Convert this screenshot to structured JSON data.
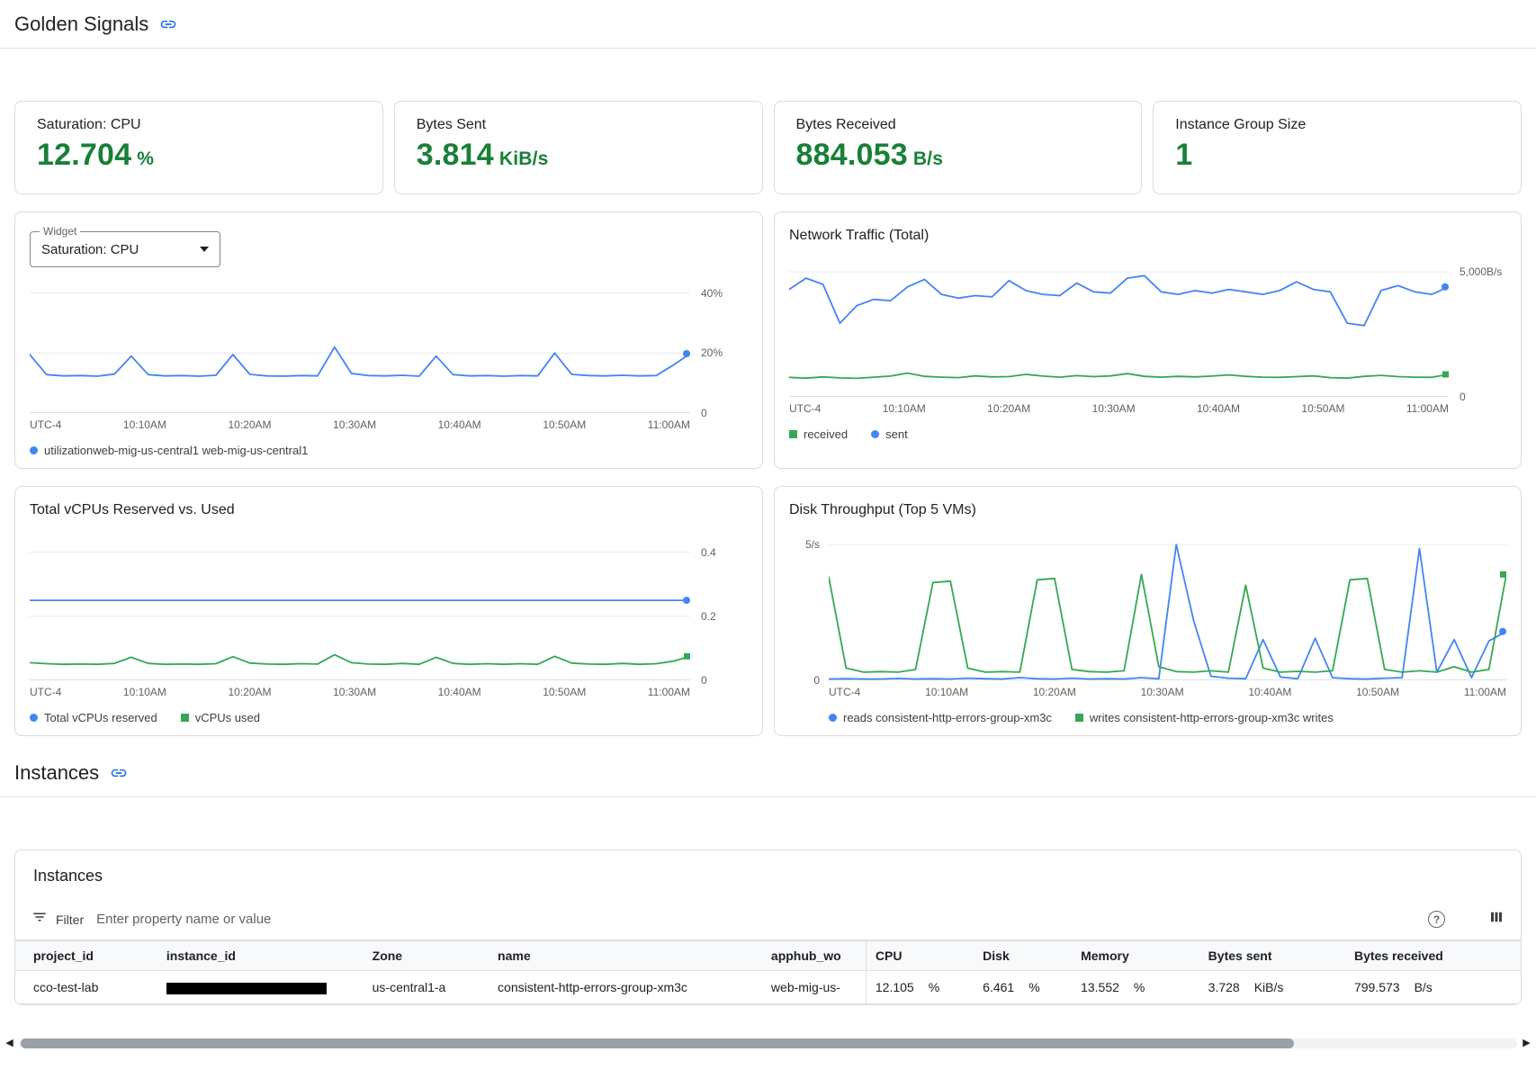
{
  "header": {
    "title": "Golden Signals"
  },
  "section_instances": {
    "title": "Instances"
  },
  "icons": {
    "help": "?",
    "scroll_left": "◀",
    "scroll_right": "▶"
  },
  "colors": {
    "link_blue": "#1a73e8",
    "chart_blue": "#4285f4",
    "chart_green": "#34a853",
    "value_green": "#188038"
  },
  "scorecards": [
    {
      "label": "Saturation: CPU",
      "value": "12.704",
      "unit": "%"
    },
    {
      "label": "Bytes Sent",
      "value": "3.814",
      "unit": "KiB/s"
    },
    {
      "label": "Bytes Received",
      "value": "884.053",
      "unit": "B/s"
    },
    {
      "label": "Instance Group Size",
      "value": "1",
      "unit": ""
    }
  ],
  "widget_selector": {
    "label": "Widget",
    "value": "Saturation: CPU"
  },
  "chart_data": [
    {
      "type": "line",
      "title": "",
      "x_labels": [
        "UTC-4",
        "10:10AM",
        "10:20AM",
        "10:30AM",
        "10:40AM",
        "10:50AM",
        "11:00AM"
      ],
      "ylim": [
        0,
        45
      ],
      "yticks": [
        {
          "value": 40,
          "label": "40%"
        },
        {
          "value": 20,
          "label": "20%"
        },
        {
          "value": 0,
          "label": "0"
        }
      ],
      "y_labels_side": "right",
      "grid": true,
      "legend_position": "bottom",
      "series": [
        {
          "name": "utilizationweb-mig-us-central1 web-mig-us-central1",
          "color": "#4285f4",
          "marker": "circle",
          "values": [
            19.5,
            12.8,
            12.4,
            12.5,
            12.3,
            13,
            19,
            12.8,
            12.4,
            12.5,
            12.3,
            12.6,
            19.5,
            12.9,
            12.4,
            12.3,
            12.5,
            12.4,
            22,
            13.2,
            12.5,
            12.4,
            12.6,
            12.3,
            19,
            12.8,
            12.4,
            12.5,
            12.3,
            12.5,
            12.4,
            20,
            12.9,
            12.5,
            12.4,
            12.6,
            12.4,
            12.5,
            16,
            19.8
          ]
        }
      ]
    },
    {
      "type": "line",
      "title": "Network Traffic (Total)",
      "x_labels": [
        "UTC-4",
        "10:10AM",
        "10:20AM",
        "10:30AM",
        "10:40AM",
        "10:50AM",
        "11:00AM"
      ],
      "ylim": [
        0,
        5400
      ],
      "yticks": [
        {
          "value": 5000,
          "label": "5,000B/s"
        },
        {
          "value": 0,
          "label": "0"
        }
      ],
      "y_labels_side": "right",
      "grid": true,
      "legend_position": "bottom",
      "series": [
        {
          "name": "received",
          "color": "#34a853",
          "marker": "square",
          "values": [
            780,
            750,
            800,
            760,
            740,
            790,
            830,
            950,
            820,
            790,
            770,
            840,
            800,
            810,
            900,
            830,
            790,
            850,
            810,
            840,
            930,
            820,
            790,
            820,
            800,
            830,
            880,
            820,
            790,
            780,
            810,
            840,
            770,
            750,
            820,
            860,
            810,
            790,
            780,
            900
          ]
        },
        {
          "name": "sent",
          "color": "#4285f4",
          "marker": "circle",
          "values": [
            4300,
            4750,
            4500,
            2950,
            3650,
            3900,
            3850,
            4400,
            4700,
            4100,
            3950,
            4050,
            4000,
            4650,
            4250,
            4100,
            4050,
            4550,
            4200,
            4150,
            4750,
            4850,
            4200,
            4100,
            4250,
            4150,
            4300,
            4200,
            4100,
            4250,
            4600,
            4300,
            4200,
            2950,
            2850,
            4250,
            4450,
            4200,
            4100,
            4400
          ]
        }
      ]
    },
    {
      "type": "line",
      "title": "Total vCPUs Reserved vs. Used",
      "x_labels": [
        "UTC-4",
        "10:10AM",
        "10:20AM",
        "10:30AM",
        "10:40AM",
        "10:50AM",
        "11:00AM"
      ],
      "ylim": [
        0,
        0.45
      ],
      "yticks": [
        {
          "value": 0.4,
          "label": "0.4"
        },
        {
          "value": 0.2,
          "label": "0.2"
        },
        {
          "value": 0,
          "label": "0"
        }
      ],
      "y_labels_side": "right",
      "grid": true,
      "legend_position": "bottom",
      "series": [
        {
          "name": "Total vCPUs reserved",
          "color": "#4285f4",
          "marker": "circle",
          "values": [
            0.25,
            0.25,
            0.25,
            0.25,
            0.25,
            0.25,
            0.25,
            0.25,
            0.25,
            0.25,
            0.25,
            0.25,
            0.25,
            0.25,
            0.25,
            0.25,
            0.25,
            0.25,
            0.25,
            0.25,
            0.25,
            0.25,
            0.25,
            0.25,
            0.25,
            0.25,
            0.25,
            0.25,
            0.25,
            0.25,
            0.25,
            0.25,
            0.25,
            0.25,
            0.25,
            0.25,
            0.25,
            0.25,
            0.25,
            0.25
          ]
        },
        {
          "name": "vCPUs used",
          "color": "#34a853",
          "marker": "square",
          "values": [
            0.055,
            0.052,
            0.05,
            0.051,
            0.05,
            0.053,
            0.072,
            0.053,
            0.05,
            0.051,
            0.05,
            0.052,
            0.074,
            0.054,
            0.051,
            0.05,
            0.052,
            0.051,
            0.08,
            0.055,
            0.051,
            0.05,
            0.053,
            0.05,
            0.072,
            0.053,
            0.05,
            0.052,
            0.05,
            0.052,
            0.05,
            0.075,
            0.054,
            0.051,
            0.05,
            0.053,
            0.05,
            0.052,
            0.06,
            0.075
          ]
        }
      ]
    },
    {
      "type": "line",
      "title": "Disk Throughput (Top 5 VMs)",
      "x_labels": [
        "UTC-4",
        "10:10AM",
        "10:20AM",
        "10:30AM",
        "10:40AM",
        "10:50AM",
        "11:00AM"
      ],
      "ylim": [
        0,
        5.3
      ],
      "yticks": [
        {
          "value": 5,
          "label": "5/s"
        },
        {
          "value": 0,
          "label": "0"
        }
      ],
      "y_labels_side": "left",
      "grid": true,
      "legend_position": "bottom",
      "series": [
        {
          "name": "reads consistent-http-errors-group-xm3c",
          "color": "#4285f4",
          "marker": "circle",
          "values": [
            0.05,
            0.06,
            0.05,
            0.05,
            0.07,
            0.05,
            0.06,
            0.05,
            0.08,
            0.06,
            0.05,
            0.1,
            0.06,
            0.05,
            0.08,
            0.05,
            0.06,
            0.05,
            0.1,
            0.06,
            5.0,
            2.2,
            0.15,
            0.08,
            0.06,
            1.5,
            0.12,
            0.06,
            1.55,
            0.1,
            0.06,
            0.05,
            0.08,
            0.1,
            4.85,
            0.3,
            1.5,
            0.1,
            1.45,
            1.8
          ]
        },
        {
          "name": "writes consistent-http-errors-group-xm3c writes",
          "color": "#34a853",
          "marker": "square",
          "values": [
            3.8,
            0.45,
            0.3,
            0.32,
            0.3,
            0.4,
            3.6,
            3.65,
            0.45,
            0.3,
            0.32,
            0.3,
            3.7,
            3.75,
            0.4,
            0.32,
            0.3,
            0.35,
            3.9,
            0.5,
            0.32,
            0.3,
            0.35,
            0.3,
            3.5,
            0.45,
            0.3,
            0.33,
            0.3,
            0.35,
            3.7,
            3.75,
            0.4,
            0.3,
            0.35,
            0.3,
            0.5,
            0.3,
            0.4,
            3.9
          ]
        }
      ]
    }
  ],
  "instances": {
    "title": "Instances",
    "filter": {
      "label": "Filter",
      "placeholder": "Enter property name or value"
    },
    "columns": [
      "project_id",
      "instance_id",
      "Zone",
      "name",
      "apphub_wo",
      "CPU",
      "Disk",
      "Memory",
      "Bytes sent",
      "Bytes received"
    ],
    "rows": [
      [
        {
          "t": "cco-test-lab"
        },
        {
          "redacted": true
        },
        {
          "t": "us-central1-a"
        },
        {
          "t": "consistent-http-errors-group-xm3c"
        },
        {
          "t": "web-mig-us-"
        },
        {
          "v": "12.105",
          "u": "%"
        },
        {
          "v": "6.461",
          "u": "%"
        },
        {
          "v": "13.552",
          "u": "%"
        },
        {
          "v": "3.728",
          "u": "KiB/s"
        },
        {
          "v": "799.573",
          "u": "B/s"
        }
      ]
    ]
  }
}
